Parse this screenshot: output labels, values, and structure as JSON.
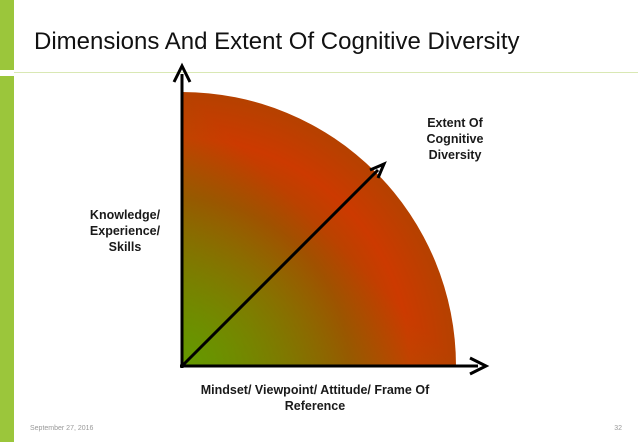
{
  "slide": {
    "title": "Dimensions And Extent Of Cognitive Diversity",
    "footer_date": "September 27, 2016",
    "page_number": "32"
  },
  "diagram": {
    "y_axis_label": "Knowledge/\nExperience/\nSkills",
    "x_axis_label": "Mindset/ Viewpoint/ Attitude/ Frame Of\nReference",
    "diagonal_label": "Extent Of\nCognitive\nDiversity",
    "colors": {
      "accent_bar": "#9bc63b",
      "gradient_outer": "#cc3a00",
      "gradient_inner": "#7a9a00",
      "gradient_edge": "#4f9a00",
      "axis": "#000000"
    }
  }
}
